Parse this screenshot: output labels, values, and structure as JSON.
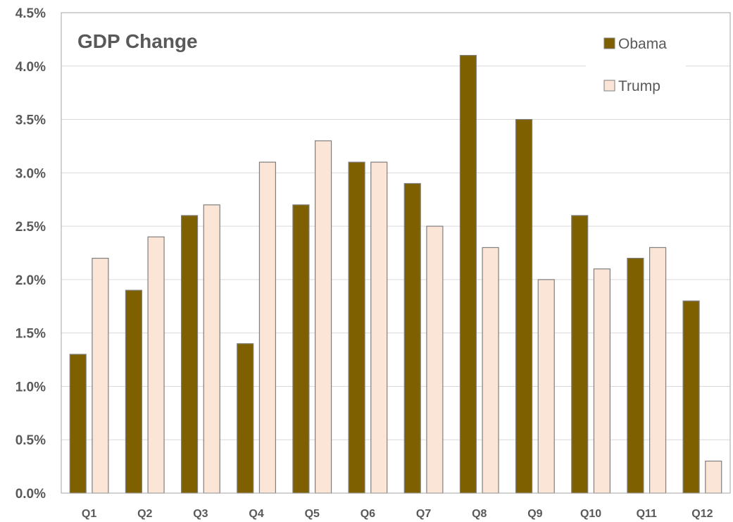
{
  "chart_data": {
    "type": "bar",
    "title": "GDP Change",
    "categories": [
      "Q1",
      "Q2",
      "Q3",
      "Q4",
      "Q5",
      "Q6",
      "Q7",
      "Q8",
      "Q9",
      "Q10",
      "Q11",
      "Q12"
    ],
    "series": [
      {
        "name": "Obama",
        "color": "#7f6000",
        "values": [
          1.3,
          1.9,
          2.6,
          1.4,
          2.7,
          3.1,
          2.9,
          4.1,
          3.5,
          2.6,
          2.2,
          1.8
        ]
      },
      {
        "name": "Trump",
        "color": "#fbe5d6",
        "values": [
          2.2,
          2.4,
          2.7,
          3.1,
          3.3,
          3.1,
          2.5,
          2.3,
          2.0,
          2.1,
          2.3,
          0.3
        ]
      }
    ],
    "ylim": [
      0,
      4.5
    ],
    "yticks": [
      "0.0%",
      "0.5%",
      "1.0%",
      "1.5%",
      "2.0%",
      "2.5%",
      "3.0%",
      "3.5%",
      "4.0%",
      "4.5%"
    ],
    "grid": true,
    "legend_position": "top-right",
    "bar_border_color": "#7f7f7f"
  }
}
